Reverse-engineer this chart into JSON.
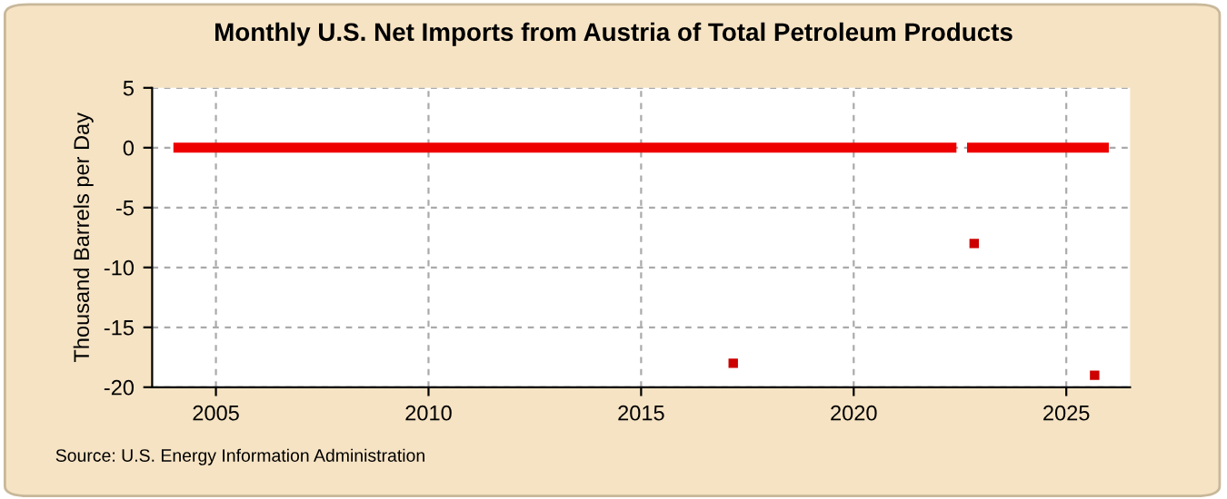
{
  "chart_data": {
    "type": "scatter",
    "title": "Monthly U.S. Net Imports from Austria of Total Petroleum Products",
    "ylabel": "Thousand Barrels per Day",
    "annotations": [
      "Source: U.S. Energy Information Administration"
    ],
    "series": [
      {
        "type": "line",
        "color": "#ee0000",
        "x": [
          "2004-01",
          "2022-06",
          "2022-07",
          "2022-09",
          "2026-01"
        ],
        "values": [
          0,
          0,
          null,
          0,
          0
        ]
      },
      {
        "marker": "square",
        "color": "#cc0000",
        "x": [
          "2017-03",
          "2022-11",
          "2025-09"
        ],
        "values": [
          -18,
          -8,
          -19
        ]
      }
    ],
    "xlim": [
      "2003-07",
      "2026-07"
    ],
    "xticks": [
      "2005",
      "2010",
      "2015",
      "2020",
      "2025"
    ],
    "ylim": [
      -20,
      5
    ],
    "yticks": [
      -20,
      -15,
      -10,
      -5,
      0,
      5
    ],
    "grid": true,
    "legend": false
  }
}
